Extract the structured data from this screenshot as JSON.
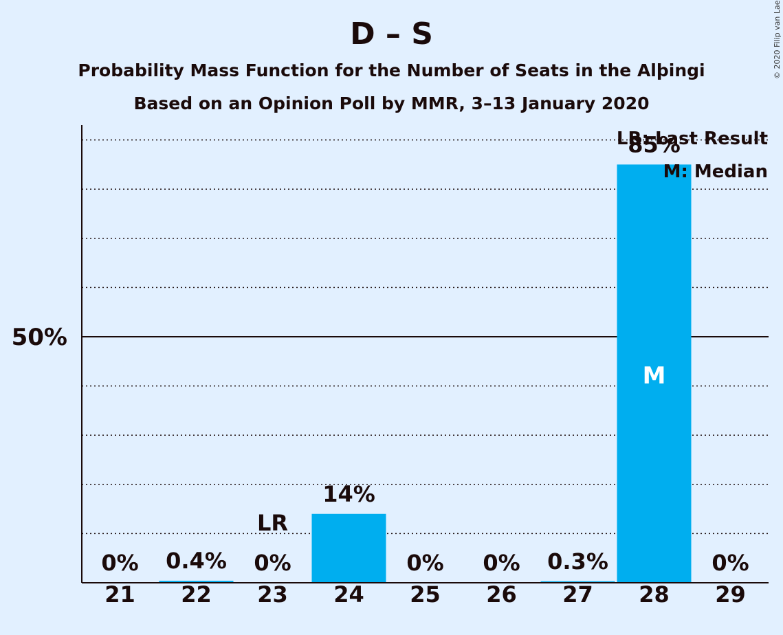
{
  "title": "D – S",
  "subtitle1": "Probability Mass Function for the Number of Seats in the Alþingi",
  "subtitle2": "Based on an Opinion Poll by MMR, 3–13 January 2020",
  "copyright": "© 2020 Filip van Laenen",
  "colors": {
    "background": "#e2f0ff",
    "bar": "#00aeef",
    "text": "#1a0a0a"
  },
  "chart_data": {
    "type": "bar",
    "categories": [
      "21",
      "22",
      "23",
      "24",
      "25",
      "26",
      "27",
      "28",
      "29"
    ],
    "values": [
      0,
      0.4,
      0,
      14,
      0,
      0,
      0.3,
      85,
      0
    ],
    "data_labels": [
      "0%",
      "0.4%",
      "0%",
      "14%",
      "0%",
      "0%",
      "0.3%",
      "85%",
      "0%"
    ],
    "ylim": [
      0,
      93
    ],
    "y_gridlines": [
      10,
      20,
      30,
      40,
      50,
      60,
      70,
      80,
      90
    ],
    "y_tick_labels": [
      {
        "value": 50,
        "label": "50%"
      }
    ],
    "last_result": {
      "category": "23",
      "label": "LR"
    },
    "median": {
      "category": "28",
      "label": "M"
    },
    "legend": [
      "LR: Last Result",
      "M: Median"
    ],
    "legend_position": "top-right",
    "grid": true
  }
}
